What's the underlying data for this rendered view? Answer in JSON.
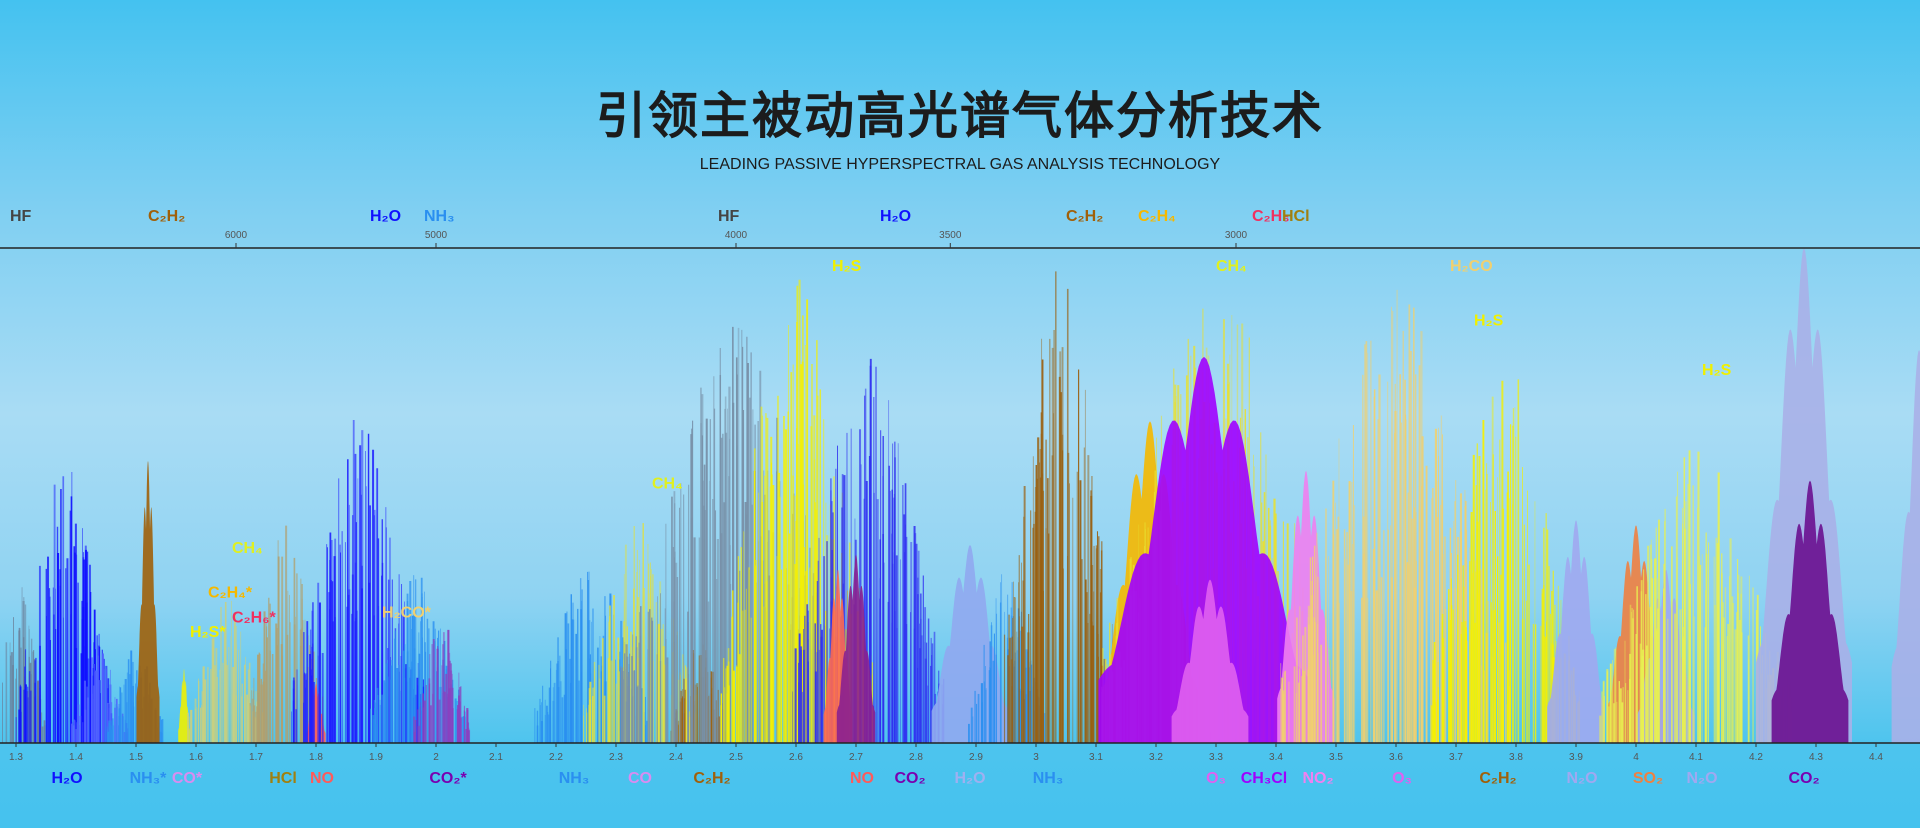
{
  "title": "引领主被动高光谱气体分析技术",
  "subtitle": "LEADING PASSIVE HYPERSPECTRAL GAS ANALYSIS TECHNOLOGY",
  "chart_data": {
    "type": "area",
    "x_bottom": {
      "unit": "µm",
      "ticks": [
        1.3,
        1.4,
        1.5,
        1.6,
        1.7,
        1.8,
        1.9,
        2.0,
        2.1,
        2.2,
        2.3,
        2.4,
        2.5,
        2.6,
        2.7,
        2.8,
        2.9,
        3.0,
        3.1,
        3.2,
        3.3,
        3.4,
        3.5,
        3.6,
        3.7,
        3.8,
        3.9,
        4.0,
        4.1,
        4.2,
        4.3,
        4.4
      ],
      "range": [
        1.27,
        4.49
      ]
    },
    "x_top": {
      "unit": "cm-1",
      "ticks": [
        6000,
        5000,
        4000,
        3500,
        3000
      ]
    },
    "top_labels": [
      {
        "text": "HF",
        "um": 1.29,
        "color": "#444444"
      },
      {
        "text": "C₂H₂",
        "um": 1.52,
        "color": "#a0600a"
      },
      {
        "text": "H₂O",
        "um": 1.89,
        "color": "#1010ff"
      },
      {
        "text": "NH₃",
        "um": 1.98,
        "color": "#2a8ff0"
      },
      {
        "text": "HF",
        "um": 2.47,
        "color": "#444444"
      },
      {
        "text": "H₂O",
        "um": 2.74,
        "color": "#1010ff"
      },
      {
        "text": "C₂H₂",
        "um": 3.05,
        "color": "#a0600a"
      },
      {
        "text": "C₂H₄",
        "um": 3.17,
        "color": "#f5b800"
      },
      {
        "text": "C₂H₆",
        "um": 3.36,
        "color": "#f03060"
      },
      {
        "text": "HCl",
        "um": 3.41,
        "color": "#a08010"
      }
    ],
    "inner_labels": [
      {
        "text": "H₂S",
        "um": 2.66,
        "level": 0.97,
        "color": "#f0f000"
      },
      {
        "text": "CH₄",
        "um": 2.36,
        "level": 0.53,
        "color": "#e0f020"
      },
      {
        "text": "CH₄",
        "um": 3.3,
        "level": 0.97,
        "color": "#e0f020"
      },
      {
        "text": "H₂CO",
        "um": 3.69,
        "level": 0.97,
        "color": "#f0d070"
      },
      {
        "text": "H₂S",
        "um": 3.73,
        "level": 0.86,
        "color": "#f0f000"
      },
      {
        "text": "H₂S",
        "um": 4.11,
        "level": 0.76,
        "color": "#f0f000"
      },
      {
        "text": "CH₄",
        "um": 1.66,
        "level": 0.4,
        "color": "#e0f020"
      },
      {
        "text": "C₂H₄*",
        "um": 1.62,
        "level": 0.31,
        "color": "#f5b800"
      },
      {
        "text": "C₂H₆*",
        "um": 1.66,
        "level": 0.26,
        "color": "#f03060"
      },
      {
        "text": "H₂S*",
        "um": 1.59,
        "level": 0.23,
        "color": "#f0f000"
      },
      {
        "text": "H₂CO*",
        "um": 1.91,
        "level": 0.27,
        "color": "#f0d070"
      }
    ],
    "bottom_labels": [
      {
        "text": "H₂O",
        "um": 1.385,
        "color": "#1010ff"
      },
      {
        "text": "NH₃*",
        "um": 1.52,
        "color": "#2a8ff0"
      },
      {
        "text": "CO*",
        "um": 1.585,
        "color": "#d98cf0"
      },
      {
        "text": "HCl",
        "um": 1.745,
        "color": "#a08010"
      },
      {
        "text": "NO",
        "um": 1.81,
        "color": "#ff5a5a"
      },
      {
        "text": "CO₂*",
        "um": 2.02,
        "color": "#7a00b0"
      },
      {
        "text": "NH₃",
        "um": 2.23,
        "color": "#2a8ff0"
      },
      {
        "text": "CO",
        "um": 2.34,
        "color": "#d98cf0"
      },
      {
        "text": "C₂H₂",
        "um": 2.46,
        "color": "#a0600a"
      },
      {
        "text": "NO",
        "um": 2.71,
        "color": "#ff5a5a"
      },
      {
        "text": "CO₂",
        "um": 2.79,
        "color": "#7a00b0"
      },
      {
        "text": "H₂O",
        "um": 2.89,
        "color": "#9fb0f0"
      },
      {
        "text": "NH₃",
        "um": 3.02,
        "color": "#2a8ff0"
      },
      {
        "text": "O₃",
        "um": 3.3,
        "color": "#e060f0"
      },
      {
        "text": "CH₃Cl",
        "um": 3.38,
        "color": "#a000ff"
      },
      {
        "text": "NO₂",
        "um": 3.47,
        "color": "#f080f0"
      },
      {
        "text": "O₃",
        "um": 3.61,
        "color": "#e060f0"
      },
      {
        "text": "C₂H₂",
        "um": 3.77,
        "color": "#a0600a"
      },
      {
        "text": "N₂O",
        "um": 3.91,
        "color": "#a0a8f0"
      },
      {
        "text": "SO₂",
        "um": 4.02,
        "color": "#f08040"
      },
      {
        "text": "N₂O",
        "um": 4.11,
        "color": "#a0a8f0"
      },
      {
        "text": "CO₂",
        "um": 4.28,
        "color": "#7a00b0"
      }
    ],
    "bands": [
      {
        "gas": "HF",
        "um": 1.3,
        "width": 0.03,
        "peak": 0.35,
        "style": "lines",
        "color": "#6a7f99"
      },
      {
        "gas": "H₂O",
        "um": 1.38,
        "width": 0.05,
        "peak": 0.59,
        "style": "lines",
        "color": "#1010ff"
      },
      {
        "gas": "H₂O",
        "um": 1.44,
        "width": 0.03,
        "peak": 0.2,
        "style": "lines",
        "color": "#5060ff"
      },
      {
        "gas": "NH₃",
        "um": 1.5,
        "width": 0.03,
        "peak": 0.2,
        "style": "lines",
        "color": "#2a8ff0"
      },
      {
        "gas": "C₂H₂",
        "um": 1.52,
        "width": 0.012,
        "peak": 0.57,
        "style": "fill",
        "color": "#a0600a"
      },
      {
        "gas": "H₂S",
        "um": 1.58,
        "width": 0.006,
        "peak": 0.15,
        "style": "fill",
        "color": "#f0f000"
      },
      {
        "gas": "CH₄",
        "um": 1.65,
        "width": 0.04,
        "peak": 0.3,
        "style": "lines",
        "color": "#c8d080"
      },
      {
        "gas": "HCl",
        "um": 1.75,
        "width": 0.04,
        "peak": 0.45,
        "style": "lines",
        "color": "#b0a070"
      },
      {
        "gas": "NO",
        "um": 1.8,
        "width": 0.01,
        "peak": 0.12,
        "style": "fill",
        "color": "#ff5a5a"
      },
      {
        "gas": "H₂O",
        "um": 1.87,
        "width": 0.07,
        "peak": 0.66,
        "style": "lines",
        "color": "#2020ff"
      },
      {
        "gas": "NH₃",
        "um": 1.97,
        "width": 0.05,
        "peak": 0.35,
        "style": "lines",
        "color": "#2a8ff0"
      },
      {
        "gas": "CO₂",
        "um": 2.01,
        "width": 0.03,
        "peak": 0.25,
        "style": "lines",
        "color": "#8a40c0"
      },
      {
        "gas": "NH₃",
        "um": 2.26,
        "width": 0.06,
        "peak": 0.38,
        "style": "lines",
        "color": "#2a8ff0"
      },
      {
        "gas": "CH₄",
        "um": 2.34,
        "width": 0.06,
        "peak": 0.45,
        "style": "lines",
        "color": "#e0e040"
      },
      {
        "gas": "C₂H₂",
        "um": 2.44,
        "width": 0.03,
        "peak": 0.22,
        "style": "lines",
        "color": "#a0600a"
      },
      {
        "gas": "HF",
        "um": 2.5,
        "width": 0.12,
        "peak": 0.85,
        "style": "lines",
        "color": "#7890a8"
      },
      {
        "gas": "H₂S",
        "um": 2.6,
        "width": 0.08,
        "peak": 0.95,
        "style": "lines",
        "color": "#f5f000"
      },
      {
        "gas": "H₂O",
        "um": 2.72,
        "width": 0.08,
        "peak": 0.8,
        "style": "lines",
        "color": "#3030f0"
      },
      {
        "gas": "NO",
        "um": 2.67,
        "width": 0.015,
        "peak": 0.35,
        "style": "fill",
        "color": "#ff6a50"
      },
      {
        "gas": "CO₂",
        "um": 2.7,
        "width": 0.02,
        "peak": 0.38,
        "style": "fill",
        "color": "#8a2090"
      },
      {
        "gas": "H₂O",
        "um": 2.89,
        "width": 0.04,
        "peak": 0.4,
        "style": "fill",
        "color": "#90a8f0"
      },
      {
        "gas": "NH₃",
        "um": 2.95,
        "width": 0.04,
        "peak": 0.35,
        "style": "lines",
        "color": "#2a8ff0"
      },
      {
        "gas": "C₂H₂",
        "um": 3.04,
        "width": 0.06,
        "peak": 0.98,
        "style": "lines",
        "color": "#9a6010"
      },
      {
        "gas": "C₂H₄",
        "um": 3.19,
        "width": 0.05,
        "peak": 0.65,
        "style": "fill",
        "color": "#f5b800"
      },
      {
        "gas": "CH₄",
        "um": 3.3,
        "width": 0.12,
        "peak": 0.95,
        "style": "lines",
        "color": "#e8e030"
      },
      {
        "gas": "O₃",
        "um": 3.28,
        "width": 0.11,
        "peak": 0.78,
        "style": "fill",
        "color": "#a000ff"
      },
      {
        "gas": "O₃",
        "um": 3.29,
        "width": 0.04,
        "peak": 0.33,
        "style": "fill",
        "color": "#e060f0"
      },
      {
        "gas": "NO₂",
        "um": 3.45,
        "width": 0.03,
        "peak": 0.55,
        "style": "fill",
        "color": "#f080f0"
      },
      {
        "gas": "H₂CO",
        "um": 3.6,
        "width": 0.12,
        "peak": 0.92,
        "style": "lines",
        "color": "#f0d070"
      },
      {
        "gas": "H₂S",
        "um": 3.78,
        "width": 0.08,
        "peak": 0.78,
        "style": "lines",
        "color": "#f5f000"
      },
      {
        "gas": "N₂O",
        "um": 3.9,
        "width": 0.03,
        "peak": 0.45,
        "style": "fill",
        "color": "#a0a8f0"
      },
      {
        "gas": "SO₂",
        "um": 4.0,
        "width": 0.03,
        "peak": 0.44,
        "style": "fill",
        "color": "#f08040"
      },
      {
        "gas": "N₂O",
        "um": 4.05,
        "width": 0.03,
        "peak": 0.35,
        "style": "fill",
        "color": "#a0a8f0"
      },
      {
        "gas": "H₂S",
        "um": 4.1,
        "width": 0.1,
        "peak": 0.6,
        "style": "lines",
        "color": "#e8f050"
      },
      {
        "gas": "N₂O",
        "um": 4.28,
        "width": 0.05,
        "peak": 1.0,
        "style": "fill",
        "color": "#a8b0e8"
      },
      {
        "gas": "CO₂",
        "um": 4.29,
        "width": 0.04,
        "peak": 0.53,
        "style": "fill",
        "color": "#6a1090"
      },
      {
        "gas": "N₂O",
        "um": 4.49,
        "width": 0.04,
        "peak": 0.95,
        "style": "fill",
        "color": "#a8b0e8"
      }
    ]
  }
}
